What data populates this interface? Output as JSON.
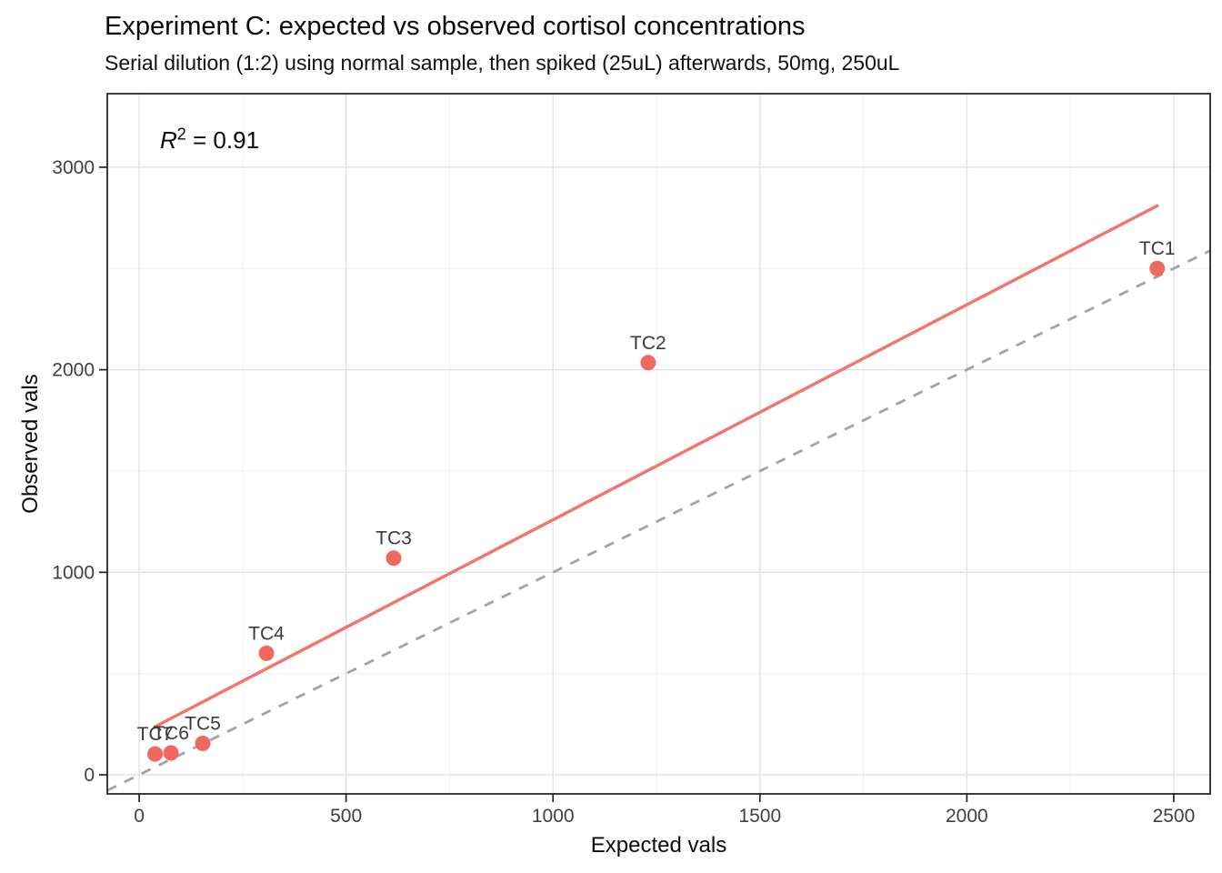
{
  "annotation": {
    "r_symbol": "R",
    "exponent": "2",
    "equals_value": " = 0.91"
  },
  "chart_data": {
    "type": "scatter",
    "title": "Experiment C: expected vs observed cortisol concentrations",
    "subtitle": "Serial dilution (1:2) using normal sample, then spiked (25uL) afterwards, 50mg, 250uL",
    "xlabel": "Expected vals",
    "ylabel": "Observed vals",
    "r_squared": 0.91,
    "points": [
      {
        "label": "TC1",
        "x": 2460,
        "y": 2500
      },
      {
        "label": "TC2",
        "x": 1230,
        "y": 2035
      },
      {
        "label": "TC3",
        "x": 615,
        "y": 1070
      },
      {
        "label": "TC4",
        "x": 307.5,
        "y": 600
      },
      {
        "label": "TC5",
        "x": 153.75,
        "y": 155
      },
      {
        "label": "TC6",
        "x": 76.9,
        "y": 108
      },
      {
        "label": "TC7",
        "x": 38.4,
        "y": 103
      }
    ],
    "x_ticks": [
      0,
      500,
      1000,
      1500,
      2000,
      2500
    ],
    "y_ticks": [
      0,
      1000,
      2000,
      3000
    ],
    "x_minor_gridlines": [
      250,
      750,
      1250,
      1750,
      2250
    ],
    "y_minor_gridlines": [
      500,
      1500,
      2500
    ],
    "x_range": [
      -77,
      2588
    ],
    "y_range": [
      -94,
      3363
    ],
    "fit_line": {
      "slope": 1.062,
      "intercept": 197,
      "x_start": 38.4,
      "x_end": 2460
    },
    "identity_line": {
      "slope": 1,
      "intercept": 0
    },
    "grid": true,
    "legend": "none",
    "colors": {
      "point": "#F1695E",
      "fit_line": "#F4746B",
      "identity_line": "#A3A3A3",
      "grid_major": "#E1E1E1",
      "grid_minor": "#EFEFEF",
      "panel_border": "#1A1A1A",
      "tick_mark": "#222222",
      "tick_label": "#404040",
      "point_label": "#3A3A3A",
      "background": "#FFFFFF"
    }
  }
}
